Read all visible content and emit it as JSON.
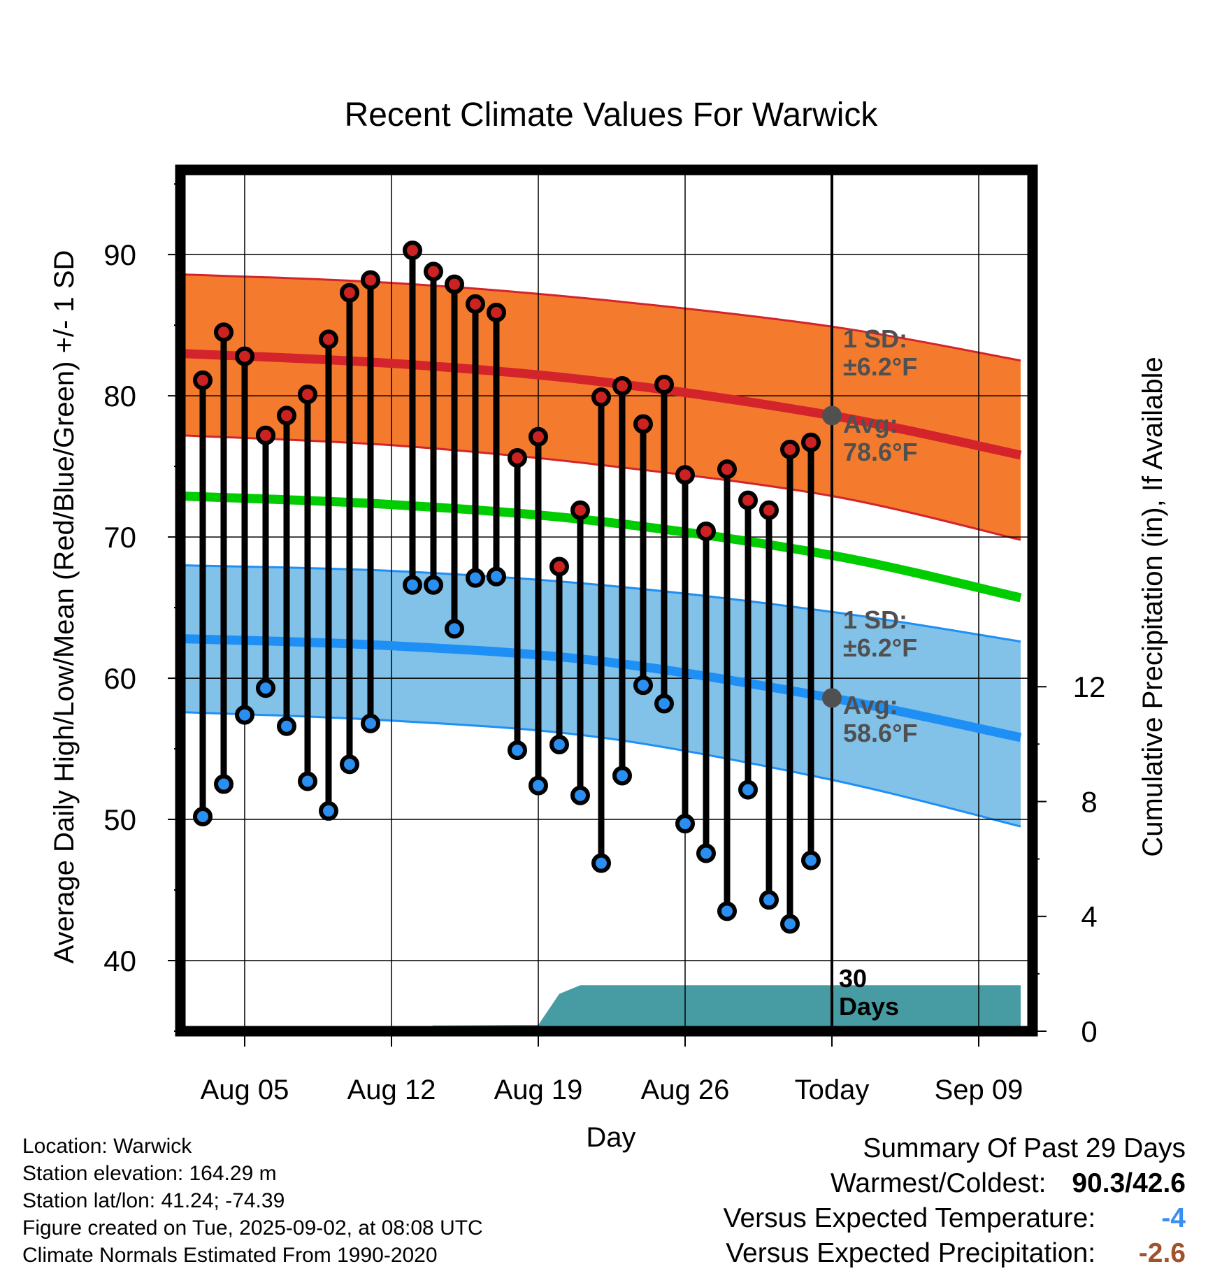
{
  "chart_data": {
    "type": "line",
    "title": "Recent Climate Values For Warwick",
    "xlabel": "Day",
    "ylabel_left": "Average Daily High/Low/Mean (Red/Blue/Green) +/- 1 SD",
    "ylabel_right": "Cumulative Precipitation (in), If Available",
    "ylim_left": [
      35,
      96
    ],
    "ylim_right": [
      0,
      30
    ],
    "yticks_left": [
      "40",
      "50",
      "60",
      "70",
      "80",
      "90"
    ],
    "yticks_right": [
      "0",
      "4",
      "8",
      "12"
    ],
    "x_range": [
      "Aug 02",
      "Sep 11"
    ],
    "x_tick_labels": [
      {
        "day": "Aug 05",
        "label": "Aug 05"
      },
      {
        "day": "Aug 12",
        "label": "Aug 12"
      },
      {
        "day": "Aug 19",
        "label": "Aug 19"
      },
      {
        "day": "Aug 26",
        "label": "Aug 26"
      },
      {
        "day": "Sep 02",
        "label": "Today"
      },
      {
        "day": "Sep 09",
        "label": "Sep 09"
      }
    ],
    "today": "Sep 02",
    "grid": true,
    "days": [
      "Aug 03",
      "Aug 04",
      "Aug 05",
      "Aug 06",
      "Aug 07",
      "Aug 08",
      "Aug 09",
      "Aug 10",
      "Aug 11",
      "Aug 12",
      "Aug 13",
      "Aug 14",
      "Aug 15",
      "Aug 16",
      "Aug 17",
      "Aug 18",
      "Aug 19",
      "Aug 20",
      "Aug 21",
      "Aug 22",
      "Aug 23",
      "Aug 24",
      "Aug 25",
      "Aug 26",
      "Aug 27",
      "Aug 28",
      "Aug 29",
      "Aug 30",
      "Aug 31",
      "Sep 01"
    ],
    "daily_high": [
      81.1,
      84.5,
      82.8,
      77.2,
      78.6,
      80.1,
      84.0,
      87.3,
      88.2,
      null,
      90.3,
      88.8,
      87.9,
      86.5,
      85.9,
      75.6,
      77.1,
      67.9,
      71.9,
      79.9,
      80.7,
      78.0,
      80.8,
      74.4,
      70.4,
      74.8,
      72.6,
      71.9,
      76.2,
      76.7
    ],
    "daily_low": [
      50.2,
      52.5,
      57.4,
      59.3,
      56.6,
      52.7,
      50.6,
      53.9,
      56.8,
      null,
      66.6,
      66.6,
      63.5,
      67.1,
      67.2,
      54.9,
      52.4,
      55.3,
      51.7,
      46.9,
      53.1,
      59.5,
      58.2,
      49.7,
      47.6,
      43.5,
      52.1,
      44.3,
      42.6,
      47.1
    ],
    "normal_curves": {
      "x": [
        "Aug 02",
        "Aug 12",
        "Aug 22",
        "Sep 02",
        "Sep 11"
      ],
      "high_avg": [
        83.0,
        82.3,
        81.0,
        78.6,
        75.8
      ],
      "high_upper": [
        88.6,
        88.0,
        86.8,
        84.9,
        82.5
      ],
      "high_lower": [
        77.2,
        76.5,
        75.1,
        72.9,
        69.8
      ],
      "mean_avg": [
        72.9,
        72.3,
        71.1,
        68.7,
        65.7
      ],
      "low_avg": [
        62.8,
        62.3,
        61.2,
        58.6,
        55.8
      ],
      "low_upper": [
        68.0,
        67.6,
        66.6,
        64.7,
        62.6
      ],
      "low_lower": [
        57.6,
        57.0,
        55.8,
        52.8,
        49.5
      ]
    },
    "precip_cumulative": {
      "x": [
        "Aug 02",
        "Aug 12",
        "Aug 13",
        "Aug 14",
        "Aug 18",
        "Aug 19",
        "Aug 20",
        "Aug 21",
        "Sep 11"
      ],
      "values": [
        0.0,
        0.0,
        0.0,
        0.2,
        0.22,
        0.22,
        1.3,
        1.6,
        1.6
      ]
    },
    "colors": {
      "high_band": "#f47b2e",
      "high_avg": "#d4242b",
      "mean": "#00cc00",
      "low_band": "#82c1e8",
      "low_avg": "#1e8ff5",
      "precip": "#479ba3",
      "high_marker": "#cc2222",
      "low_marker": "#2a8ff0",
      "annotation": "#505050"
    },
    "annotations": {
      "high_sd": [
        "1 SD:",
        "±6.2°F"
      ],
      "high_avg": [
        "Avg:",
        "78.6°F"
      ],
      "low_sd": [
        "1 SD:",
        "±6.2°F"
      ],
      "low_avg": [
        "Avg:",
        "58.6°F"
      ],
      "window": [
        "30",
        "Days"
      ]
    }
  },
  "footer": {
    "location": "Location: Warwick",
    "elevation": "Station elevation: 164.29 m",
    "latlon": "Station lat/lon: 41.24; -74.39",
    "created": "Figure created on Tue, 2025-09-02, at 08:08 UTC",
    "normals": "Climate Normals Estimated From 1990-2020"
  },
  "summary": {
    "title": "Summary Of Past 29 Days",
    "warm_cold_label": "Warmest/Coldest:",
    "warm_cold_value": "90.3/42.6",
    "temp_label": "Versus Expected Temperature:",
    "temp_value": "-4",
    "temp_color": "#3a8ef0",
    "precip_label": "Versus Expected Precipitation:",
    "precip_value": "-2.6",
    "precip_color": "#a0522d"
  }
}
